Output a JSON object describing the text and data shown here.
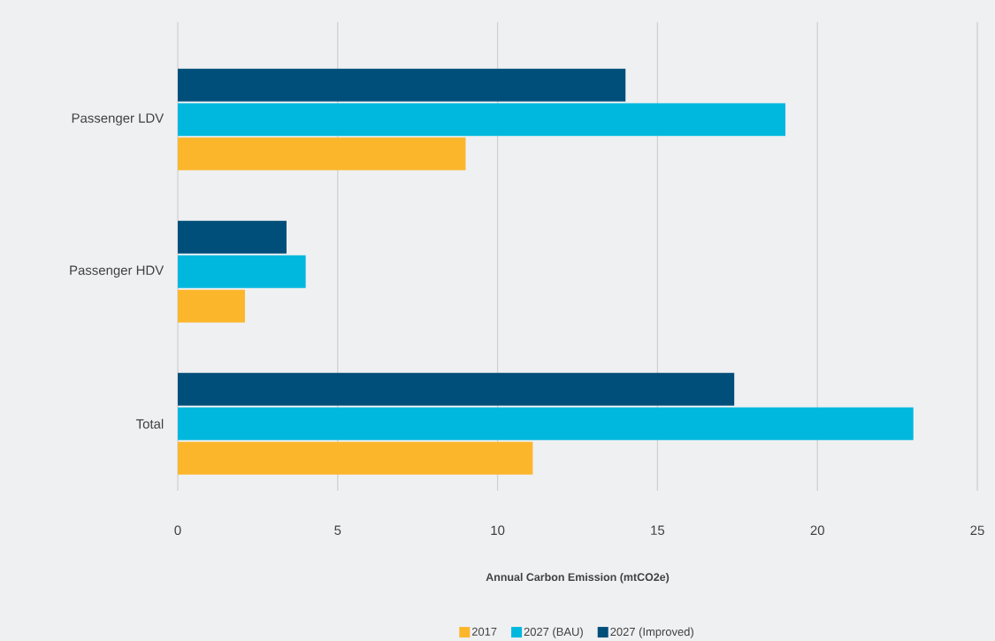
{
  "chart_data": {
    "type": "bar",
    "orientation": "horizontal",
    "categories": [
      "Passenger LDV",
      "Passenger HDV",
      "Total"
    ],
    "series": [
      {
        "name": "2017",
        "color": "#fbb62b",
        "values": [
          9,
          2.1,
          11.1
        ]
      },
      {
        "name": "2027 (BAU)",
        "color": "#00b8de",
        "values": [
          19,
          4,
          23
        ]
      },
      {
        "name": "2027 (Improved)",
        "color": "#004e7a",
        "values": [
          14,
          3.4,
          17.4
        ]
      }
    ],
    "xlabel": "Annual Carbon Emission (mtCO2e)",
    "xlim": [
      0,
      25
    ],
    "xticks": [
      0,
      5,
      10,
      15,
      20,
      25
    ],
    "grid": "x",
    "legend": "bottom"
  }
}
